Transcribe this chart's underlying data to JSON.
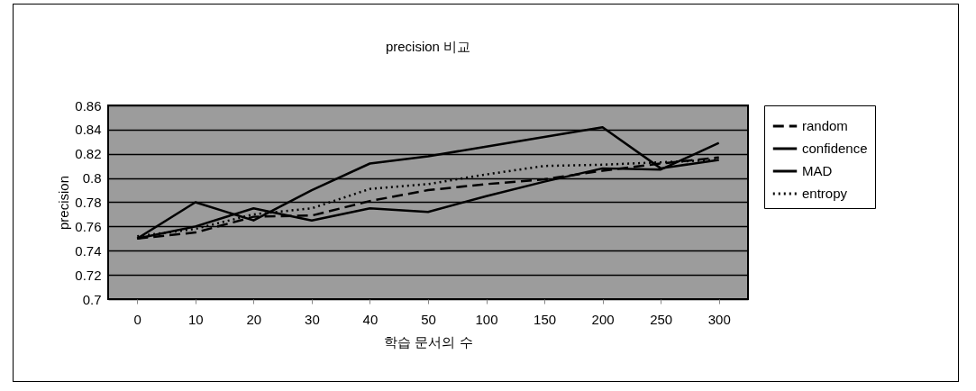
{
  "chart_data": {
    "type": "line",
    "title": "precision 비교",
    "xlabel": "학습 문서의 수",
    "ylabel": "precision",
    "categories": [
      "0",
      "10",
      "20",
      "30",
      "40",
      "50",
      "100",
      "150",
      "200",
      "250",
      "300"
    ],
    "series": [
      {
        "name": "random",
        "color": "#000000",
        "line_style": "dashed",
        "values": [
          0.75,
          0.755,
          0.768,
          0.769,
          0.781,
          0.79,
          0.795,
          0.799,
          0.806,
          0.812,
          0.817
        ]
      },
      {
        "name": "confidence",
        "color": "#000000",
        "line_style": "solid",
        "values": [
          0.75,
          0.76,
          0.775,
          0.765,
          0.775,
          0.772,
          0.785,
          0.797,
          0.808,
          0.807,
          0.829
        ]
      },
      {
        "name": "MAD",
        "color": "#000000",
        "line_style": "solid",
        "values": [
          0.75,
          0.78,
          0.765,
          0.79,
          0.812,
          0.818,
          0.826,
          0.834,
          0.842,
          0.808,
          0.815
        ]
      },
      {
        "name": "entropy",
        "color": "#000000",
        "line_style": "dotted",
        "values": [
          0.752,
          0.758,
          0.77,
          0.775,
          0.791,
          0.795,
          0.803,
          0.81,
          0.811,
          0.813,
          0.815
        ]
      }
    ],
    "ylim": [
      0.7,
      0.86
    ],
    "yticks": [
      0.7,
      0.72,
      0.74,
      0.76,
      0.78,
      0.8,
      0.82,
      0.84,
      0.86
    ],
    "grid": "y",
    "legend": "right",
    "marker": "none"
  }
}
